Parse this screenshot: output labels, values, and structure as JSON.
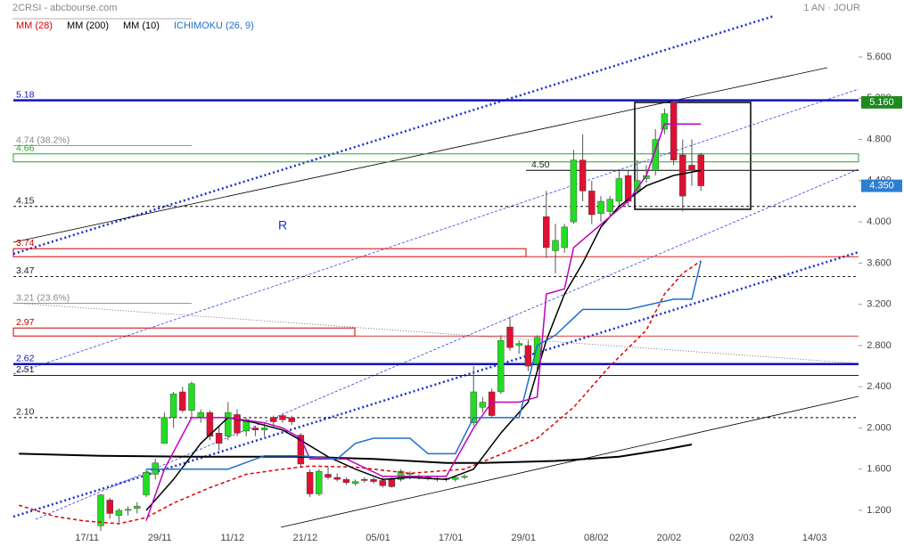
{
  "chart_data": {
    "type": "candlestick",
    "source": "2CRSI - abcbourse.com",
    "period": "1 AN · JOUR",
    "annotation": "R",
    "categories": [
      null,
      null,
      null,
      null,
      null,
      null,
      null,
      null,
      "17/11",
      null,
      null,
      null,
      null,
      null,
      null,
      null,
      "29/11",
      null,
      null,
      null,
      null,
      null,
      null,
      null,
      "11/12",
      null,
      null,
      null,
      null,
      null,
      null,
      null,
      "21/12",
      null,
      null,
      null,
      null,
      null,
      null,
      null,
      "05/01",
      null,
      null,
      null,
      null,
      null,
      null,
      null,
      "17/01",
      null,
      null,
      null,
      null,
      null,
      null,
      null,
      "29/01",
      null,
      null,
      null,
      null,
      null,
      null,
      null,
      "08/02",
      null,
      null,
      null,
      null,
      null,
      null,
      null,
      "20/02",
      null,
      null,
      null,
      null,
      null,
      null,
      null,
      "02/03",
      null,
      null,
      null,
      null,
      null,
      null,
      null,
      "14/03"
    ],
    "ylim": [
      1.2,
      5.6
    ],
    "yticks": [
      {
        "value": 1.2,
        "label": "1.200"
      },
      {
        "value": 1.6,
        "label": "1.600"
      },
      {
        "value": 2.0,
        "label": "2.000"
      },
      {
        "value": 2.4,
        "label": "2.400"
      },
      {
        "value": 2.8,
        "label": "2.800"
      },
      {
        "value": 3.2,
        "label": "3.200"
      },
      {
        "value": 3.6,
        "label": "3.600"
      },
      {
        "value": 4.0,
        "label": "4.000"
      },
      {
        "value": 4.4,
        "label": "4.400"
      },
      {
        "value": 4.8,
        "label": "4.800"
      },
      {
        "value": 5.2,
        "label": "5.200"
      },
      {
        "value": 5.6,
        "label": "5.600"
      }
    ],
    "candles": {
      "up_color": "#22dd22",
      "down_color": "#dd1133",
      "x": [
        10,
        11,
        12,
        13,
        14,
        15,
        16,
        17,
        18,
        19,
        20,
        21,
        22,
        23,
        24,
        25,
        26,
        27,
        28,
        29,
        30,
        31,
        32,
        33,
        34,
        35,
        36,
        37,
        38,
        39,
        40,
        41,
        42,
        43,
        44,
        45,
        46,
        47,
        48,
        49,
        50,
        51,
        52,
        53,
        54,
        55,
        56,
        57,
        58,
        59,
        60,
        61,
        62,
        63,
        64,
        65,
        66,
        67,
        68,
        69,
        70,
        71,
        72,
        73,
        74,
        75,
        76
      ],
      "open": [
        1.05,
        1.3,
        1.15,
        1.2,
        1.22,
        1.35,
        1.55,
        1.85,
        2.1,
        2.35,
        2.17,
        2.1,
        2.15,
        1.95,
        1.92,
        2.13,
        1.97,
        2.0,
        1.98,
        2.1,
        2.12,
        2.1,
        1.93,
        1.57,
        1.36,
        1.55,
        1.52,
        1.5,
        1.46,
        1.5,
        1.5,
        1.49,
        1.5,
        1.5,
        1.55,
        1.53,
        1.52,
        1.51,
        1.5,
        1.5,
        1.52,
        2.05,
        2.2,
        2.35,
        2.35,
        2.98,
        2.8,
        2.8,
        2.62,
        4.05,
        3.72,
        3.75,
        4.0,
        4.6,
        4.3,
        4.08,
        4.1,
        4.2,
        4.45,
        4.3,
        4.42,
        4.5,
        4.9,
        5.16,
        4.65,
        4.55,
        4.65
      ],
      "high": [
        1.36,
        1.32,
        1.22,
        1.24,
        1.28,
        1.6,
        1.7,
        2.15,
        2.35,
        2.4,
        2.45,
        2.18,
        2.17,
        2.02,
        2.25,
        2.18,
        2.1,
        2.02,
        2.05,
        2.12,
        2.14,
        2.12,
        1.95,
        1.6,
        1.6,
        1.62,
        1.56,
        1.52,
        1.5,
        1.52,
        1.52,
        1.52,
        1.52,
        1.6,
        1.58,
        1.55,
        1.54,
        1.53,
        1.52,
        1.53,
        1.55,
        2.6,
        2.3,
        2.38,
        2.9,
        3.08,
        2.85,
        2.85,
        2.9,
        4.3,
        3.98,
        3.98,
        4.7,
        4.85,
        4.4,
        4.25,
        4.25,
        4.5,
        4.5,
        4.6,
        4.55,
        4.9,
        5.1,
        5.18,
        4.8,
        4.8,
        4.67
      ],
      "low": [
        1.0,
        1.12,
        1.08,
        1.15,
        1.17,
        1.33,
        1.5,
        1.85,
        2.0,
        2.15,
        2.1,
        2.05,
        1.88,
        1.78,
        1.88,
        1.92,
        1.92,
        1.92,
        1.92,
        2.0,
        2.05,
        2.03,
        1.62,
        1.33,
        1.34,
        1.5,
        1.48,
        1.45,
        1.44,
        1.47,
        1.46,
        1.42,
        1.42,
        1.48,
        1.5,
        1.5,
        1.49,
        1.48,
        1.48,
        1.48,
        1.5,
        2.02,
        2.15,
        2.1,
        2.33,
        2.75,
        2.72,
        2.55,
        2.55,
        3.65,
        3.5,
        3.7,
        3.98,
        4.2,
        3.98,
        4.0,
        4.05,
        4.15,
        4.15,
        4.28,
        4.38,
        4.45,
        4.85,
        4.55,
        4.1,
        4.35,
        4.3
      ],
      "close": [
        1.35,
        1.17,
        1.2,
        1.21,
        1.24,
        1.57,
        1.66,
        2.1,
        2.33,
        2.17,
        2.43,
        2.15,
        1.92,
        1.85,
        2.15,
        1.95,
        2.08,
        1.98,
        2.0,
        2.06,
        2.08,
        2.06,
        1.65,
        1.36,
        1.58,
        1.52,
        1.5,
        1.47,
        1.48,
        1.49,
        1.48,
        1.44,
        1.43,
        1.58,
        1.56,
        1.52,
        1.51,
        1.5,
        1.51,
        1.52,
        1.53,
        2.35,
        2.25,
        2.12,
        2.85,
        2.78,
        2.82,
        2.6,
        2.88,
        3.75,
        3.82,
        3.95,
        4.6,
        4.3,
        4.07,
        4.2,
        4.22,
        4.42,
        4.2,
        4.4,
        4.45,
        4.8,
        5.05,
        4.6,
        4.25,
        4.5,
        4.35
      ]
    },
    "series": [
      {
        "name": "MM (28)",
        "color": "#e00000",
        "dash": "dashed",
        "lines": [
          {
            "x": [
              1,
              5,
              8,
              12,
              15,
              18,
              22,
              26,
              30,
              33,
              38,
              44,
              50,
              55,
              58,
              62,
              66,
              70,
              72,
              74,
              76
            ],
            "values": [
              1.25,
              1.14,
              1.1,
              1.07,
              1.13,
              1.27,
              1.42,
              1.55,
              1.6,
              1.63,
              1.62,
              1.56,
              1.6,
              1.78,
              1.9,
              2.2,
              2.6,
              2.95,
              3.3,
              3.5,
              3.62
            ]
          }
        ]
      },
      {
        "name": "MM (200)",
        "color": "#000000",
        "dash": "solid",
        "width": 2,
        "lines": [
          {
            "x": [
              1,
              10,
              20,
              32,
              40,
              48,
              52,
              60,
              67,
              72,
              75
            ],
            "values": [
              1.75,
              1.73,
              1.72,
              1.72,
              1.7,
              1.66,
              1.66,
              1.68,
              1.72,
              1.79,
              1.84
            ]
          }
        ]
      },
      {
        "name": "MM (10)",
        "color": "#000000",
        "dash": "solid",
        "lines": [
          {
            "x": [
              15,
              18,
              21,
              24,
              27,
              30,
              32,
              35,
              38,
              41,
              44,
              48,
              51,
              54,
              57,
              59,
              61,
              63,
              65,
              67,
              70,
              73,
              76
            ],
            "values": [
              1.2,
              1.5,
              1.85,
              2.1,
              2.05,
              1.98,
              1.88,
              1.72,
              1.6,
              1.5,
              1.52,
              1.5,
              1.6,
              1.95,
              2.25,
              2.85,
              3.3,
              3.6,
              3.95,
              4.15,
              4.35,
              4.45,
              4.5
            ]
          }
        ]
      },
      {
        "name": "ICHIMOKU (26, 9)",
        "color": "#1f6fd0",
        "dash": "solid",
        "lines": [
          {
            "color": "#c000c0",
            "x": [
              15,
              17,
              20,
              24,
              28,
              30,
              32,
              33,
              37,
              41,
              48,
              51,
              53,
              56,
              58,
              59,
              61,
              62,
              66,
              68,
              70,
              72,
              76
            ],
            "values": [
              1.1,
              1.6,
              2.1,
              2.1,
              2.05,
              2.0,
              1.9,
              1.7,
              1.7,
              1.53,
              1.53,
              2.0,
              2.25,
              2.25,
              2.3,
              3.3,
              3.35,
              3.75,
              4.05,
              4.2,
              4.45,
              4.95,
              4.95
            ]
          },
          {
            "color": "#1f6fd0",
            "x": [
              15,
              17,
              24,
              28,
              32,
              36,
              38,
              40,
              44,
              46,
              49,
              51,
              54,
              56,
              58,
              60,
              63,
              68,
              73,
              75,
              76
            ],
            "values": [
              1.6,
              1.6,
              1.6,
              1.73,
              1.73,
              1.7,
              1.85,
              1.9,
              1.9,
              1.75,
              1.75,
              2.1,
              2.1,
              2.1,
              2.8,
              2.9,
              3.15,
              3.15,
              3.25,
              3.25,
              3.62
            ]
          }
        ]
      }
    ],
    "levels": [
      {
        "value": 5.18,
        "color": "#1010c0",
        "style": "thick"
      },
      {
        "value": 4.74,
        "label": "4.74  (38.2%)",
        "color": "#888888",
        "style": "solid"
      },
      {
        "value": 4.66,
        "color": "#22aa22",
        "style": "band"
      },
      {
        "value": 4.5,
        "label": "4.50",
        "color": "#000000",
        "style": "solid"
      },
      {
        "value": 4.15,
        "color": "#000000",
        "style": "dashed"
      },
      {
        "value": 3.74,
        "color": "#cc0000",
        "style": "band"
      },
      {
        "value": 3.47,
        "color": "#000000",
        "style": "dashed"
      },
      {
        "value": 3.21,
        "label": "3.21  (23.6%)",
        "color": "#888888",
        "style": "solid"
      },
      {
        "value": 2.97,
        "color": "#cc0000",
        "style": "band"
      },
      {
        "value": 2.62,
        "color": "#1010c0",
        "style": "thick"
      },
      {
        "value": 2.51,
        "color": "#000000",
        "style": "solid"
      },
      {
        "value": 2.1,
        "label": "2.10",
        "color": "#000000",
        "style": "dashed"
      }
    ],
    "price_tags": [
      {
        "value": 5.16,
        "label": "5.160",
        "color": "#1e8a1e"
      },
      {
        "value": 4.35,
        "label": "4.350",
        "color": "#2a7fd4"
      }
    ]
  }
}
